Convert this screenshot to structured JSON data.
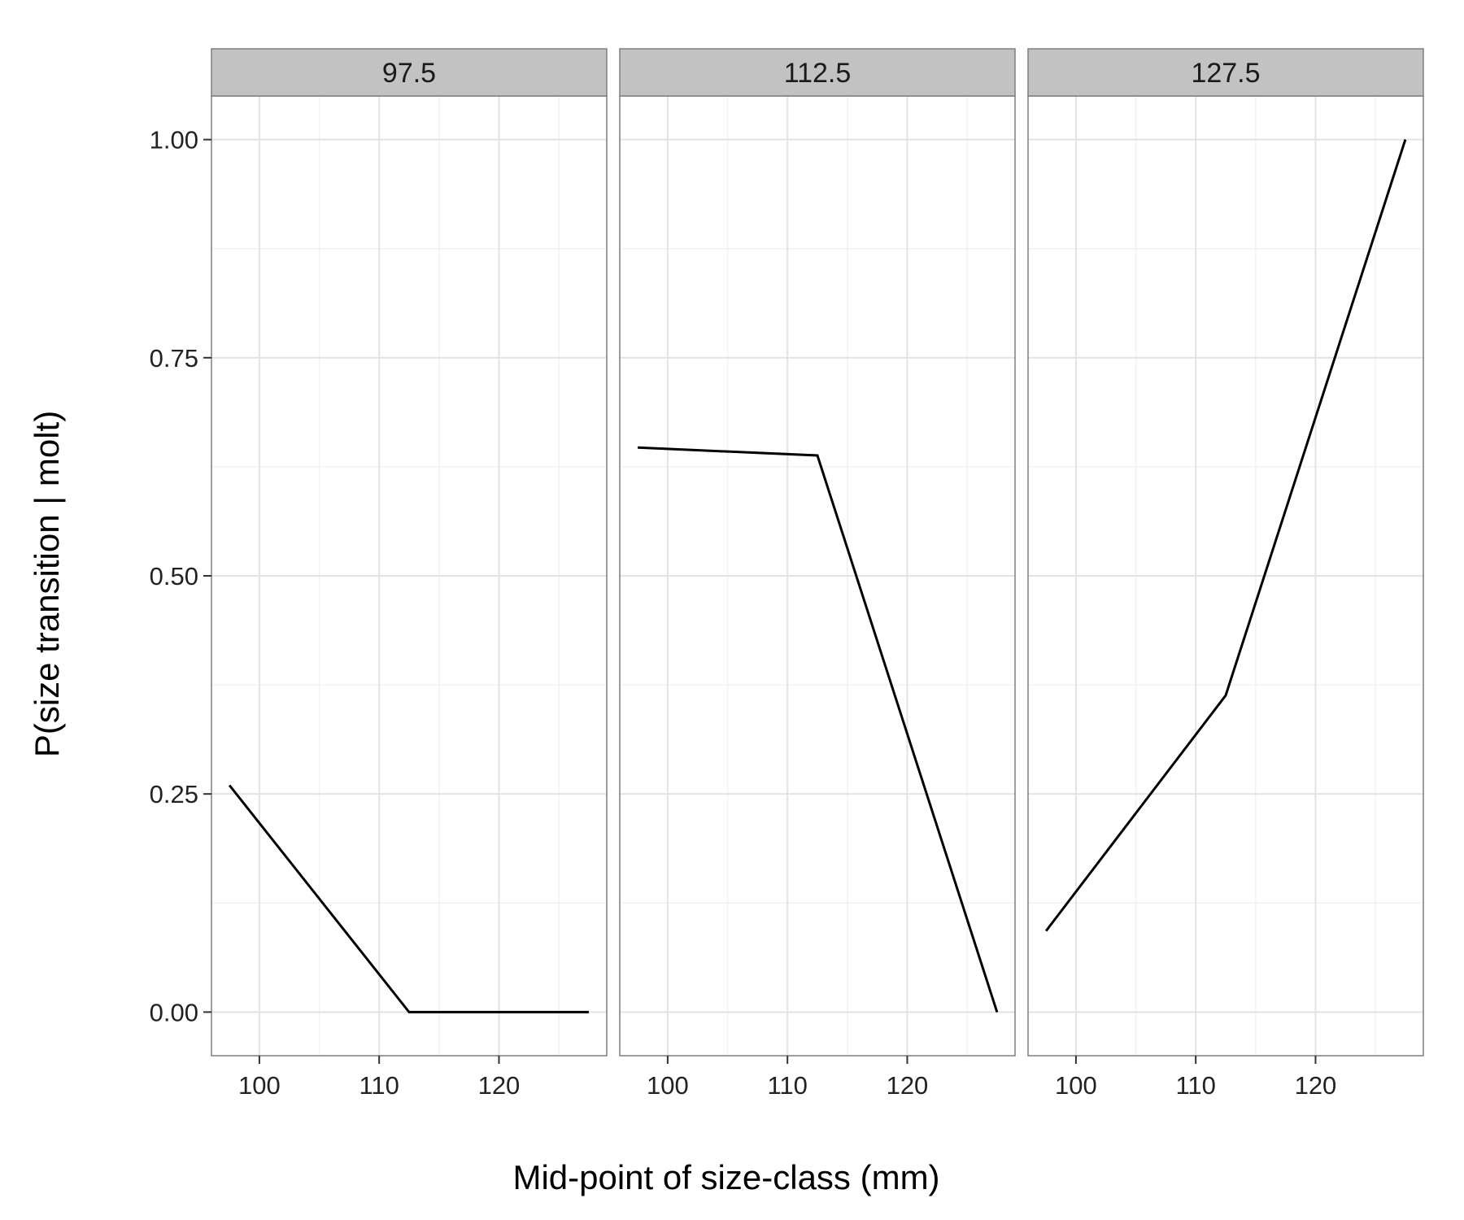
{
  "chart_data": {
    "type": "line",
    "xlabel": "Mid-point of size-class (mm)",
    "ylabel": "P(size transition | molt)",
    "xlim": [
      96,
      129
    ],
    "ylim": [
      -0.05,
      1.05
    ],
    "x_ticks": [
      100,
      110,
      120
    ],
    "x_tick_labels": [
      "100",
      "110",
      "120"
    ],
    "y_ticks": [
      0,
      0.25,
      0.5,
      0.75,
      1
    ],
    "y_tick_labels": [
      "0.00",
      "0.25",
      "0.50",
      "0.75",
      "1.00"
    ],
    "grid": true,
    "line_color": "#000000",
    "panels": [
      {
        "label": "97.5",
        "x": [
          97.5,
          112.5,
          127.5
        ],
        "y": [
          0.26,
          0.0,
          0.0
        ]
      },
      {
        "label": "112.5",
        "x": [
          97.5,
          112.5,
          127.5
        ],
        "y": [
          0.647,
          0.638,
          0.0
        ]
      },
      {
        "label": "127.5",
        "x": [
          97.5,
          112.5,
          127.5
        ],
        "y": [
          0.093,
          0.363,
          1.0
        ]
      }
    ]
  }
}
